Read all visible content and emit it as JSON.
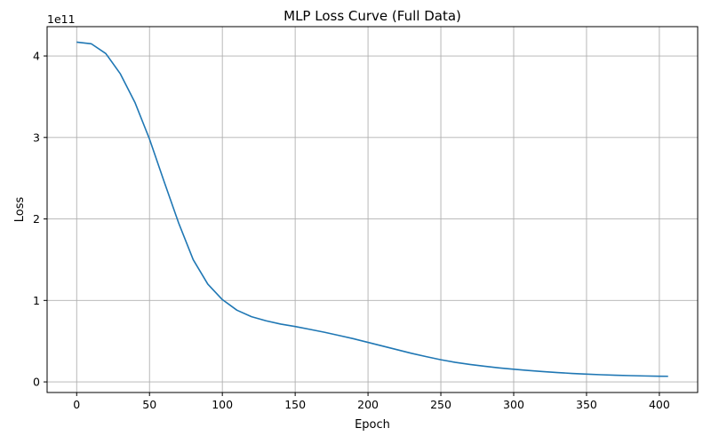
{
  "chart_data": {
    "type": "line",
    "title": "MLP Loss Curve (Full Data)",
    "xlabel": "Epoch",
    "ylabel": "Loss",
    "offset_text": "1e11",
    "x_ticks": [
      0,
      50,
      100,
      150,
      200,
      250,
      300,
      350,
      400
    ],
    "y_ticks": [
      0,
      1,
      2,
      3,
      4
    ],
    "y_scale": 100000000000,
    "xlim": [
      -20.3,
      426.3
    ],
    "ylim": [
      -13000000000.0,
      436000000000.0
    ],
    "grid": true,
    "color": "#1f77b4",
    "series": [
      {
        "x": [
          0,
          10,
          20,
          30,
          40,
          50,
          60,
          70,
          80,
          90,
          100,
          110,
          120,
          130,
          140,
          150,
          160,
          170,
          180,
          190,
          200,
          210,
          220,
          230,
          240,
          250,
          260,
          270,
          280,
          290,
          300,
          310,
          320,
          330,
          340,
          350,
          360,
          370,
          380,
          390,
          400,
          406
        ],
        "values": [
          417000000000.0,
          415000000000.0,
          403000000000.0,
          378000000000.0,
          343000000000.0,
          298000000000.0,
          246000000000.0,
          195000000000.0,
          150000000000.0,
          120000000000.0,
          101000000000.0,
          88000000000.0,
          80000000000.0,
          75000000000.0,
          71000000000.0,
          68000000000.0,
          64500000000.0,
          61000000000.0,
          57000000000.0,
          53000000000.0,
          48500000000.0,
          44000000000.0,
          39500000000.0,
          35000000000.0,
          31000000000.0,
          27200000000.0,
          24000000000.0,
          21400000000.0,
          19200000000.0,
          17200000000.0,
          15500000000.0,
          14000000000.0,
          12700000000.0,
          11500000000.0,
          10400000000.0,
          9500000000.0,
          8800000000.0,
          8200000000.0,
          7700000000.0,
          7300000000.0,
          7000000000.0,
          6900000000.0
        ]
      }
    ]
  }
}
